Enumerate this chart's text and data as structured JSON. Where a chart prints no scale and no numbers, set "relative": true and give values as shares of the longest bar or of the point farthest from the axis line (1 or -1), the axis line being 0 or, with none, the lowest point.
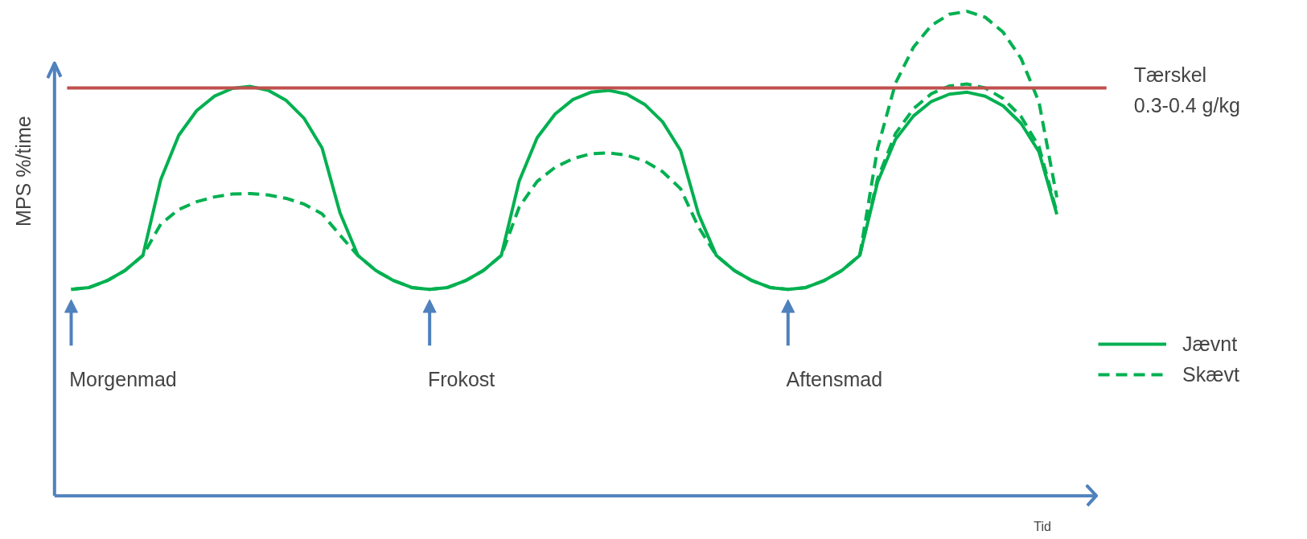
{
  "chart_data": {
    "type": "line",
    "relative": true,
    "ylabel": "MPS %/time",
    "xlabel": "Tid",
    "legend": "right",
    "grid": false,
    "marker": "none",
    "categories": [
      null,
      null,
      null,
      null,
      null,
      null,
      null,
      null,
      null,
      null,
      null,
      null,
      null,
      null,
      null,
      null,
      null,
      null,
      null,
      null,
      null,
      null,
      null,
      null,
      null,
      null,
      null,
      null,
      null,
      null,
      null,
      null,
      null,
      null,
      null,
      null,
      null,
      null,
      null,
      null,
      null,
      null,
      null,
      null,
      null,
      null,
      null,
      null,
      null,
      null,
      null,
      null,
      null,
      null,
      null,
      null
    ],
    "series": [
      {
        "name": "Jævnt",
        "color": "#00b050",
        "line_style": "solid",
        "values": [
          0.426,
          0.43,
          0.444,
          0.465,
          0.496,
          0.653,
          0.744,
          0.795,
          0.825,
          0.841,
          0.845,
          0.837,
          0.816,
          0.779,
          0.718,
          0.584,
          0.496,
          0.465,
          0.444,
          0.43,
          0.426,
          0.43,
          0.444,
          0.465,
          0.496,
          0.65,
          0.739,
          0.788,
          0.818,
          0.833,
          0.837,
          0.829,
          0.808,
          0.772,
          0.713,
          0.582,
          0.496,
          0.465,
          0.444,
          0.43,
          0.426,
          0.43,
          0.444,
          0.465,
          0.496,
          0.648,
          0.736,
          0.784,
          0.814,
          0.829,
          0.833,
          0.825,
          0.805,
          0.769,
          0.71,
          0.581
        ]
      },
      {
        "name": "Skævt",
        "color": "#00b050",
        "line_style": "dashed",
        "values": [
          0.426,
          0.43,
          0.444,
          0.465,
          0.496,
          0.561,
          0.591,
          0.607,
          0.617,
          0.623,
          0.624,
          0.621,
          0.614,
          0.602,
          0.582,
          0.538,
          0.496,
          0.465,
          0.444,
          0.43,
          0.426,
          0.43,
          0.444,
          0.465,
          0.496,
          0.596,
          0.649,
          0.678,
          0.696,
          0.706,
          0.708,
          0.703,
          0.691,
          0.669,
          0.634,
          0.555,
          0.496,
          0.465,
          0.444,
          0.43,
          0.426,
          0.43,
          0.444,
          0.465,
          0.496,
          0.718,
          0.852,
          0.926,
          0.971,
          0.994,
          1.0,
          0.988,
          0.957,
          0.903,
          0.813,
          0.616
        ]
      },
      {
        "color": "#00b050",
        "line_style": "dashed",
        "values": [
          null,
          null,
          null,
          null,
          null,
          null,
          null,
          null,
          null,
          null,
          null,
          null,
          null,
          null,
          null,
          null,
          null,
          null,
          null,
          null,
          null,
          null,
          null,
          null,
          null,
          null,
          null,
          null,
          null,
          null,
          null,
          null,
          null,
          null,
          null,
          null,
          null,
          null,
          null,
          null,
          null,
          null,
          null,
          null,
          0.496,
          0.655,
          0.748,
          0.799,
          0.83,
          0.846,
          0.85,
          0.842,
          0.82,
          0.783,
          0.721,
          0.585
        ]
      }
    ],
    "ref_lines": [
      {
        "axis": "y",
        "value": 0.842,
        "label": "Tærskel\n0.3-0.4 g/kg",
        "color": "#c0504d"
      }
    ],
    "annotations": [
      "Morgenmad",
      "Frokost",
      "Aftensmad"
    ]
  }
}
